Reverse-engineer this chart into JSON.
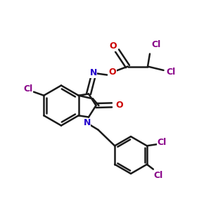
{
  "bg": "#ffffff",
  "bc": "#1a1a1a",
  "NC": "#2200cc",
  "OC": "#cc0000",
  "CC": "#880088",
  "lw": 1.8,
  "fs": 9.0,
  "xlim": [
    0,
    10
  ],
  "ylim": [
    0,
    10
  ]
}
